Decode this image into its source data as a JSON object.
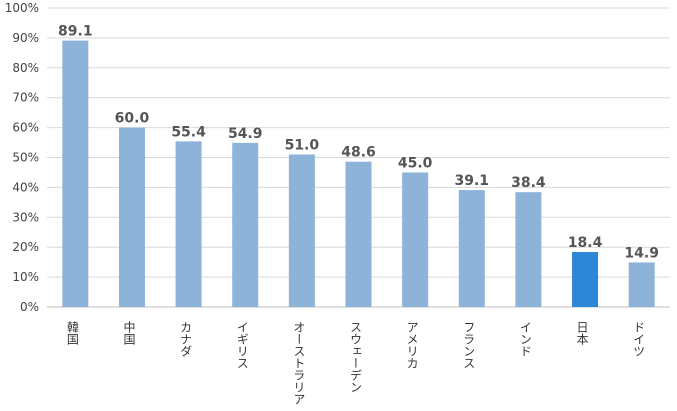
{
  "chart_data": {
    "type": "bar",
    "categories": [
      "韓国",
      "中国",
      "カナダ",
      "イギリス",
      "オーストラリア",
      "スウェーデン",
      "アメリカ",
      "フランス",
      "インド",
      "日本",
      "ドイツ"
    ],
    "values": [
      89.1,
      60.0,
      55.4,
      54.9,
      51.0,
      48.6,
      45.0,
      39.1,
      38.4,
      18.4,
      14.9
    ],
    "data_labels": [
      "89.1",
      "60.0",
      "55.4",
      "54.9",
      "51.0",
      "48.6",
      "45.0",
      "39.1",
      "38.4",
      "18.4",
      "14.9"
    ],
    "ylim": [
      0,
      100
    ],
    "yticks": [
      0,
      10,
      20,
      30,
      40,
      50,
      60,
      70,
      80,
      90,
      100
    ],
    "ytick_labels": [
      "0%",
      "10%",
      "20%",
      "30%",
      "40%",
      "50%",
      "60%",
      "70%",
      "80%",
      "90%",
      "100%"
    ],
    "grid": true,
    "highlight_category": "日本",
    "colors": {
      "bar": "#8db3d8",
      "highlight": "#2e86d6",
      "grid": "#d9d9d9",
      "axis": "#bfbfbf"
    }
  }
}
